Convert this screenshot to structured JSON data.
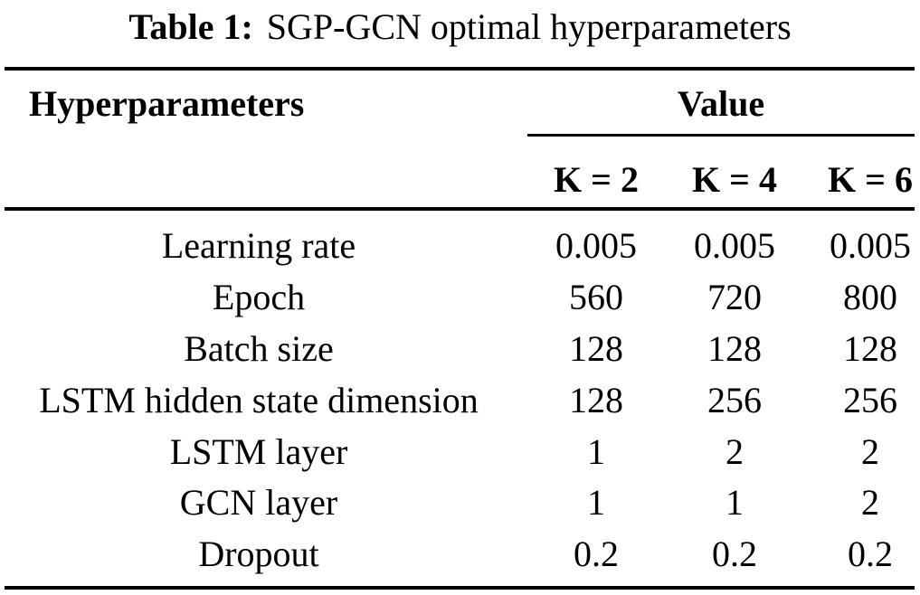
{
  "title": {
    "label": "Table 1:",
    "text": "SGP-GCN optimal hyperparameters"
  },
  "table": {
    "col_header": "Hyperparameters",
    "value_header": "Value",
    "k_headers": [
      "K = 2",
      "K = 4",
      "K = 6"
    ],
    "rows": [
      {
        "label": "Learning rate",
        "values": [
          "0.005",
          "0.005",
          "0.005"
        ]
      },
      {
        "label": "Epoch",
        "values": [
          "560",
          "720",
          "800"
        ]
      },
      {
        "label": "Batch size",
        "values": [
          "128",
          "128",
          "128"
        ]
      },
      {
        "label": "LSTM hidden state dimension",
        "values": [
          "128",
          "256",
          "256"
        ]
      },
      {
        "label": "LSTM layer",
        "values": [
          "1",
          "2",
          "2"
        ]
      },
      {
        "label": "GCN layer",
        "values": [
          "1",
          "1",
          "2"
        ]
      },
      {
        "label": "Dropout",
        "values": [
          "0.2",
          "0.2",
          "0.2"
        ]
      }
    ]
  },
  "colors": {
    "background": "#ffffff",
    "text": "#000000",
    "rule": "#000000"
  }
}
